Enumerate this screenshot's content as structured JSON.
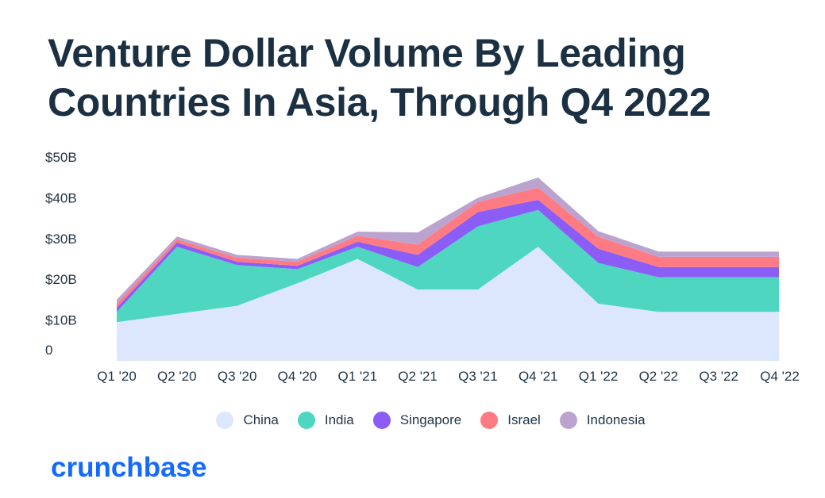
{
  "brand": {
    "name": "crunchbase"
  },
  "chart_data": {
    "type": "area",
    "stacked": true,
    "title": "Venture Dollar Volume By Leading Countries In Asia, Through Q4 2022",
    "xlabel": "",
    "ylabel": "",
    "categories": [
      "Q1 '20",
      "Q2 '20",
      "Q3 '20",
      "Q4 '20",
      "Q1 '21",
      "Q2 '21",
      "Q3 '21",
      "Q4 '21",
      "Q1 '22",
      "Q2 '22",
      "Q3 '22",
      "Q4 '22"
    ],
    "ylim": [
      0,
      50
    ],
    "yticks": [
      {
        "value": 0,
        "label": "0"
      },
      {
        "value": 10,
        "label": "$10B"
      },
      {
        "value": 20,
        "label": "$20B"
      },
      {
        "value": 30,
        "label": "$30B"
      },
      {
        "value": 40,
        "label": "$40B"
      },
      {
        "value": 50,
        "label": "$50B"
      }
    ],
    "legend_position": "bottom",
    "series": [
      {
        "name": "China",
        "color": "#dce6fc",
        "values": [
          9.5,
          11.5,
          13.5,
          19,
          25,
          17.5,
          17.5,
          28,
          14,
          12,
          12,
          12
        ]
      },
      {
        "name": "India",
        "color": "#4fd6c0",
        "values": [
          2.5,
          16.5,
          10,
          3.5,
          3,
          5.5,
          15.5,
          9,
          10,
          8.5,
          8.5,
          8.5
        ]
      },
      {
        "name": "Singapore",
        "color": "#8b5cf6",
        "values": [
          1,
          1,
          0.8,
          0.8,
          1.2,
          3,
          3.5,
          2.5,
          3.5,
          2.5,
          2.5,
          2.5
        ]
      },
      {
        "name": "Israel",
        "color": "#ff7b83",
        "values": [
          1,
          0.8,
          1,
          1,
          1.5,
          2.5,
          2.5,
          3,
          3,
          2.5,
          2.5,
          2.5
        ]
      },
      {
        "name": "Indonesia",
        "color": "#bba3cf",
        "values": [
          1,
          0.7,
          0.7,
          0.7,
          1,
          3,
          1,
          2.5,
          1.3,
          1.3,
          1.3,
          1.3
        ]
      }
    ]
  }
}
